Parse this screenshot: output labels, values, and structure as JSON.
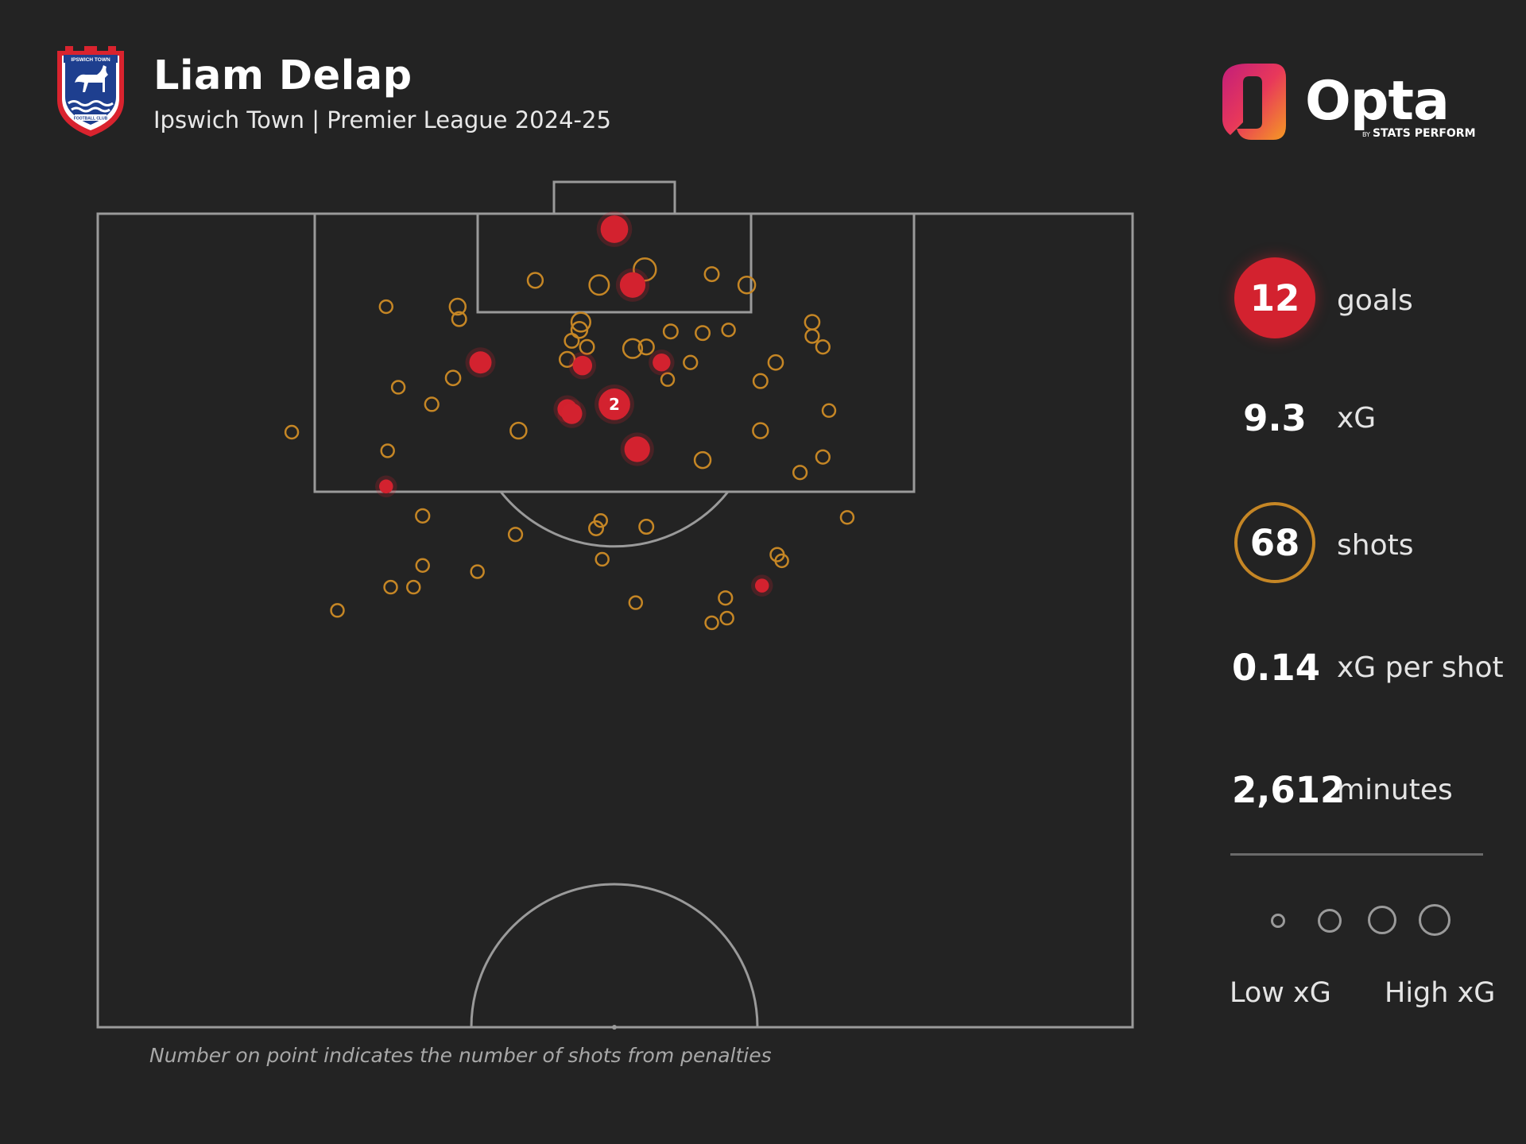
{
  "header": {
    "title": "Liam Delap",
    "subtitle": "Ipswich Town | Premier League 2024-25",
    "crest_top_text": "IPSWICH TOWN",
    "crest_bottom_text": "FOOTBALL CLUB"
  },
  "brand": {
    "name": "Opta",
    "by": "BY",
    "tagline": "STATS PERFORM"
  },
  "colors": {
    "background": "#232323",
    "goal": "#d3222f",
    "shot": "#c58625",
    "pitch_lines": "#9a9a9a"
  },
  "stats": {
    "goals": {
      "value": "12",
      "label": "goals"
    },
    "xg": {
      "value": "9.3",
      "label": "xG"
    },
    "shots": {
      "value": "68",
      "label": "shots"
    },
    "xg_per_shot": {
      "value": "0.14",
      "label": "xG per shot"
    },
    "minutes": {
      "value": "2,612",
      "label": "minutes"
    }
  },
  "legend": {
    "low": "Low xG",
    "high": "High xG",
    "sizes": [
      "smallest",
      "small",
      "large",
      "largest"
    ]
  },
  "footnote": "Number on point indicates the number of shots from penalties",
  "chart_data": {
    "type": "scatter",
    "units": "metres from goal line (y) and from pitch centre line (x, negative = left)",
    "xlim": [
      -34,
      34
    ],
    "ylim": [
      0,
      52.5
    ],
    "series": [
      {
        "name": "goals",
        "points": [
          {
            "x": 0.0,
            "y": 1.0,
            "xg": 0.55
          },
          {
            "x": 1.2,
            "y": 4.6,
            "xg": 0.45
          },
          {
            "x": -8.8,
            "y": 9.6,
            "xg": 0.3
          },
          {
            "x": -2.1,
            "y": 9.8,
            "xg": 0.2
          },
          {
            "x": 3.1,
            "y": 9.6,
            "xg": 0.15
          },
          {
            "x": 0.0,
            "y": 12.3,
            "xg": 0.79,
            "label": "2"
          },
          {
            "x": -3.1,
            "y": 12.6,
            "xg": 0.2
          },
          {
            "x": -2.8,
            "y": 12.9,
            "xg": 0.25
          },
          {
            "x": 1.5,
            "y": 15.2,
            "xg": 0.45
          },
          {
            "x": -15.0,
            "y": 17.6,
            "xg": 0.06
          },
          {
            "x": 9.7,
            "y": 24.0,
            "xg": 0.06
          }
        ]
      },
      {
        "name": "shots",
        "points": [
          {
            "x": 2.0,
            "y": 3.6,
            "xg": 0.3
          },
          {
            "x": -5.2,
            "y": 4.3,
            "xg": 0.08
          },
          {
            "x": -1.0,
            "y": 4.6,
            "xg": 0.2
          },
          {
            "x": 6.4,
            "y": 3.9,
            "xg": 0.06
          },
          {
            "x": 8.7,
            "y": 4.6,
            "xg": 0.12
          },
          {
            "x": -15.0,
            "y": 6.0,
            "xg": 0.04
          },
          {
            "x": -10.3,
            "y": 6.0,
            "xg": 0.1
          },
          {
            "x": -10.2,
            "y": 6.8,
            "xg": 0.06
          },
          {
            "x": -2.2,
            "y": 7.0,
            "xg": 0.18
          },
          {
            "x": -2.3,
            "y": 7.5,
            "xg": 0.1
          },
          {
            "x": 3.7,
            "y": 7.6,
            "xg": 0.06
          },
          {
            "x": 5.8,
            "y": 7.7,
            "xg": 0.06
          },
          {
            "x": 7.5,
            "y": 7.5,
            "xg": 0.04
          },
          {
            "x": 13.0,
            "y": 7.0,
            "xg": 0.07
          },
          {
            "x": 13.0,
            "y": 7.9,
            "xg": 0.05
          },
          {
            "x": 13.7,
            "y": 8.6,
            "xg": 0.05
          },
          {
            "x": -2.8,
            "y": 8.2,
            "xg": 0.06
          },
          {
            "x": -1.8,
            "y": 8.6,
            "xg": 0.06
          },
          {
            "x": 1.2,
            "y": 8.7,
            "xg": 0.18
          },
          {
            "x": 2.1,
            "y": 8.6,
            "xg": 0.08
          },
          {
            "x": -3.1,
            "y": 9.4,
            "xg": 0.08
          },
          {
            "x": 5.0,
            "y": 9.6,
            "xg": 0.05
          },
          {
            "x": 10.6,
            "y": 9.6,
            "xg": 0.07
          },
          {
            "x": 3.5,
            "y": 10.7,
            "xg": 0.04
          },
          {
            "x": 9.6,
            "y": 10.8,
            "xg": 0.06
          },
          {
            "x": -10.6,
            "y": 10.6,
            "xg": 0.07
          },
          {
            "x": -14.2,
            "y": 11.2,
            "xg": 0.04
          },
          {
            "x": -12.0,
            "y": 12.3,
            "xg": 0.05
          },
          {
            "x": 14.1,
            "y": 12.7,
            "xg": 0.04
          },
          {
            "x": -6.3,
            "y": 14.0,
            "xg": 0.1
          },
          {
            "x": 9.6,
            "y": 14.0,
            "xg": 0.08
          },
          {
            "x": -21.2,
            "y": 14.1,
            "xg": 0.04
          },
          {
            "x": -14.9,
            "y": 15.3,
            "xg": 0.04
          },
          {
            "x": 5.8,
            "y": 15.9,
            "xg": 0.1
          },
          {
            "x": 13.7,
            "y": 15.7,
            "xg": 0.05
          },
          {
            "x": 12.2,
            "y": 16.7,
            "xg": 0.05
          },
          {
            "x": -12.6,
            "y": 19.5,
            "xg": 0.05
          },
          {
            "x": -0.9,
            "y": 19.8,
            "xg": 0.04
          },
          {
            "x": -1.2,
            "y": 20.3,
            "xg": 0.06
          },
          {
            "x": 2.1,
            "y": 20.2,
            "xg": 0.06
          },
          {
            "x": 15.3,
            "y": 19.6,
            "xg": 0.04
          },
          {
            "x": -6.5,
            "y": 20.7,
            "xg": 0.05
          },
          {
            "x": -0.8,
            "y": 22.3,
            "xg": 0.04
          },
          {
            "x": 10.7,
            "y": 22.0,
            "xg": 0.05
          },
          {
            "x": 11.0,
            "y": 22.4,
            "xg": 0.04
          },
          {
            "x": -12.6,
            "y": 22.7,
            "xg": 0.04
          },
          {
            "x": -9.0,
            "y": 23.1,
            "xg": 0.04
          },
          {
            "x": -14.7,
            "y": 24.1,
            "xg": 0.04
          },
          {
            "x": -13.2,
            "y": 24.1,
            "xg": 0.04
          },
          {
            "x": 7.3,
            "y": 24.8,
            "xg": 0.05
          },
          {
            "x": 1.4,
            "y": 25.1,
            "xg": 0.04
          },
          {
            "x": -18.2,
            "y": 25.6,
            "xg": 0.04
          },
          {
            "x": 7.4,
            "y": 26.1,
            "xg": 0.04
          },
          {
            "x": 6.4,
            "y": 26.4,
            "xg": 0.04
          }
        ]
      }
    ]
  }
}
